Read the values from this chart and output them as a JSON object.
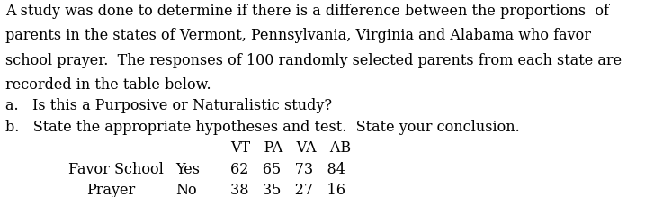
{
  "line1": "A study was done to determine if there is a difference between the proportions  of",
  "line2": "parents in the states of Vermont, Pennsylvania, Virginia and Alabama who favor",
  "line3": "school prayer.  The responses of 100 randomly selected parents from each state are",
  "line4": "recorded in the table below.",
  "line5a": "a.   Is this a Purposive or Naturalistic study?",
  "line5b": "b.   State the appropriate hypotheses and test.  State your conclusion.",
  "header_label": "VT   PA   VA   AB",
  "row1_label": "Favor School",
  "row1_response": "Yes",
  "row1_values": "62   65   73   84",
  "row2_label": "Prayer",
  "row2_response": "No",
  "row2_values": "38   35   27   16",
  "font_family": "DejaVu Serif",
  "font_size": 11.5,
  "background_color": "#ffffff",
  "text_color": "#000000"
}
